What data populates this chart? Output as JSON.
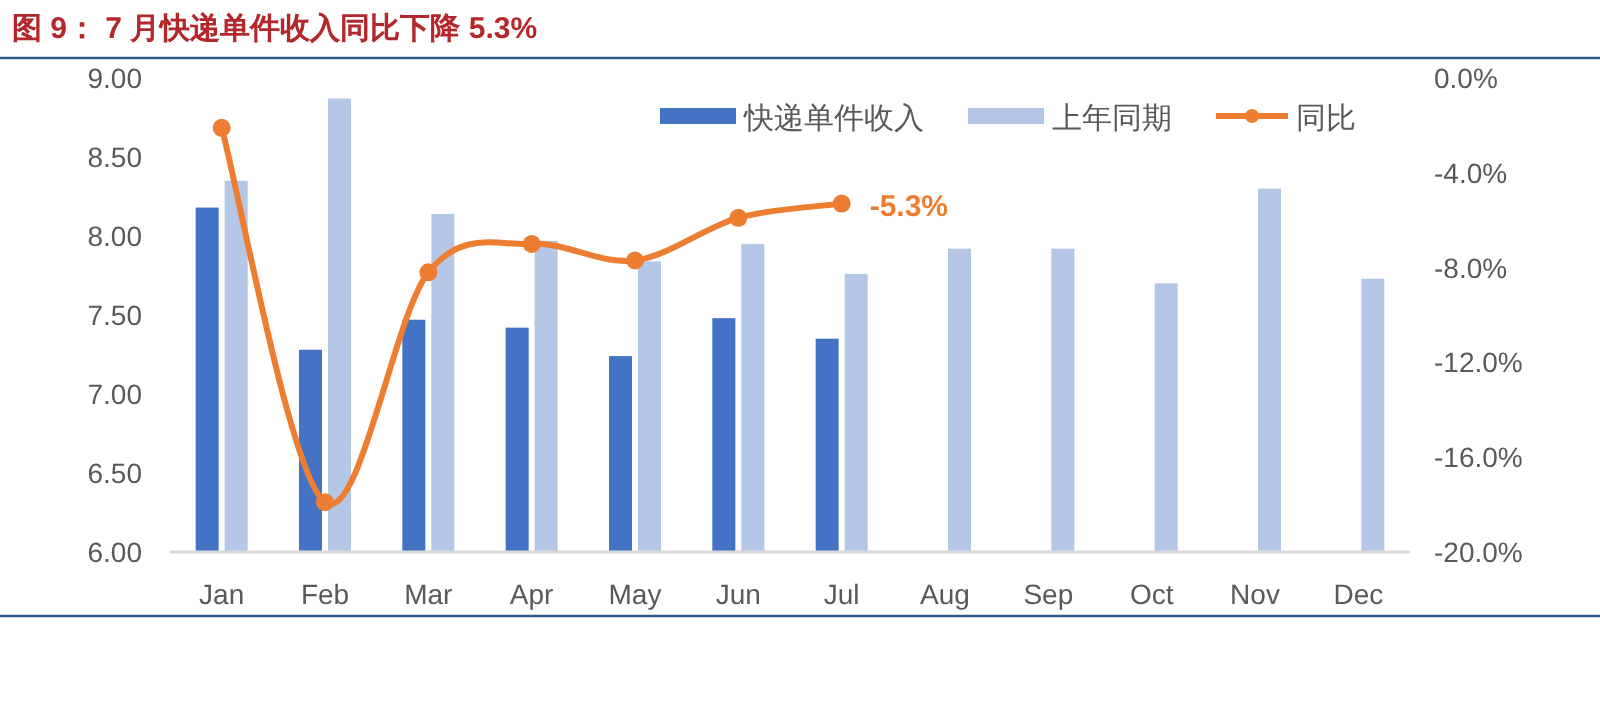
{
  "chart_data": {
    "type": "bar",
    "title": "图 9：  7 月快递单件收入同比下降 5.3%",
    "categories": [
      "Jan",
      "Feb",
      "Mar",
      "Apr",
      "May",
      "Jun",
      "Jul",
      "Aug",
      "Sep",
      "Oct",
      "Nov",
      "Dec"
    ],
    "series": [
      {
        "name": "快递单件收入",
        "color": "#4472c4",
        "values": [
          8.18,
          7.28,
          7.47,
          7.42,
          7.24,
          7.48,
          7.35,
          null,
          null,
          null,
          null,
          null
        ]
      },
      {
        "name": "上年同期",
        "color": "#b4c7e7",
        "values": [
          8.35,
          8.87,
          8.14,
          7.97,
          7.84,
          7.95,
          7.76,
          7.92,
          7.92,
          7.7,
          8.3,
          7.73
        ]
      },
      {
        "name": "同比",
        "type": "line",
        "axis": "y2",
        "color": "#ed7d31",
        "values": [
          -2.1,
          -17.9,
          -8.2,
          -7.0,
          -7.7,
          -5.9,
          -5.3,
          null,
          null,
          null,
          null,
          null
        ],
        "value_labels": [
          null,
          null,
          null,
          null,
          null,
          null,
          "-5.3%",
          null,
          null,
          null,
          null,
          null
        ]
      }
    ],
    "ylim": [
      6,
      9
    ],
    "yticks": [
      {
        "value": 6,
        "label": "6.00"
      },
      {
        "value": 6.5,
        "label": "6.50"
      },
      {
        "value": 7,
        "label": "7.00"
      },
      {
        "value": 7.5,
        "label": "7.50"
      },
      {
        "value": 8,
        "label": "8.00"
      },
      {
        "value": 8.5,
        "label": "8.50"
      },
      {
        "value": 9,
        "label": "9.00"
      }
    ],
    "y2lim": [
      -20,
      0
    ],
    "y2ticks": [
      {
        "value": -20,
        "label": "-20.0%"
      },
      {
        "value": -16,
        "label": "-16.0%"
      },
      {
        "value": -12,
        "label": "-12.0%"
      },
      {
        "value": -8,
        "label": "-8.0%"
      },
      {
        "value": -4,
        "label": "-4.0%"
      },
      {
        "value": 0,
        "label": "0.0%"
      }
    ],
    "legend": "top right",
    "grid": false,
    "marker": "circle"
  }
}
